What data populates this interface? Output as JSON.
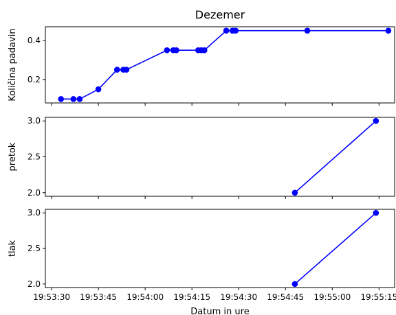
{
  "title": "Dezemer",
  "xlabel": "Datum in ure",
  "x_tick_labels": [
    "19:53:30",
    "19:53:45",
    "19:54:00",
    "19:54:15",
    "19:54:30",
    "19:54:45",
    "19:55:00",
    "19:55:15"
  ],
  "colors": {
    "line": "#0000ff",
    "axes": "#000000",
    "background": "#ffffff"
  },
  "chart_data": [
    {
      "type": "line",
      "title": "Dezemer",
      "ylabel": "Količina padavin",
      "ylim": [
        0.08,
        0.47
      ],
      "yticks": [
        0.2,
        0.4
      ],
      "ytick_labels": [
        "0.2",
        "0.4"
      ],
      "xlim": [
        "19:53:28",
        "19:55:20"
      ],
      "grid": false,
      "x": [
        "19:53:33",
        "19:53:37",
        "19:53:39",
        "19:53:45",
        "19:53:51",
        "19:53:53",
        "19:53:54",
        "19:54:07",
        "19:54:09",
        "19:54:10",
        "19:54:17",
        "19:54:18",
        "19:54:19",
        "19:54:26",
        "19:54:28",
        "19:54:29",
        "19:54:52",
        "19:55:18"
      ],
      "y": [
        0.1,
        0.1,
        0.1,
        0.15,
        0.25,
        0.25,
        0.25,
        0.35,
        0.35,
        0.35,
        0.35,
        0.35,
        0.35,
        0.45,
        0.45,
        0.45,
        0.45,
        0.45
      ]
    },
    {
      "type": "line",
      "ylabel": "pretok",
      "ylim": [
        1.95,
        3.05
      ],
      "yticks": [
        2.0,
        2.5,
        3.0
      ],
      "ytick_labels": [
        "2.0",
        "2.5",
        "3.0"
      ],
      "xlim": [
        "19:53:28",
        "19:55:20"
      ],
      "grid": false,
      "x": [
        "19:54:48",
        "19:55:14"
      ],
      "y": [
        2.0,
        3.0
      ]
    },
    {
      "type": "line",
      "ylabel": "tlak",
      "ylim": [
        1.95,
        3.05
      ],
      "yticks": [
        2.0,
        2.5,
        3.0
      ],
      "ytick_labels": [
        "2.0",
        "2.5",
        "3.0"
      ],
      "xlim": [
        "19:53:28",
        "19:55:20"
      ],
      "grid": false,
      "x": [
        "19:54:48",
        "19:55:14"
      ],
      "y": [
        2.0,
        3.0
      ]
    }
  ]
}
